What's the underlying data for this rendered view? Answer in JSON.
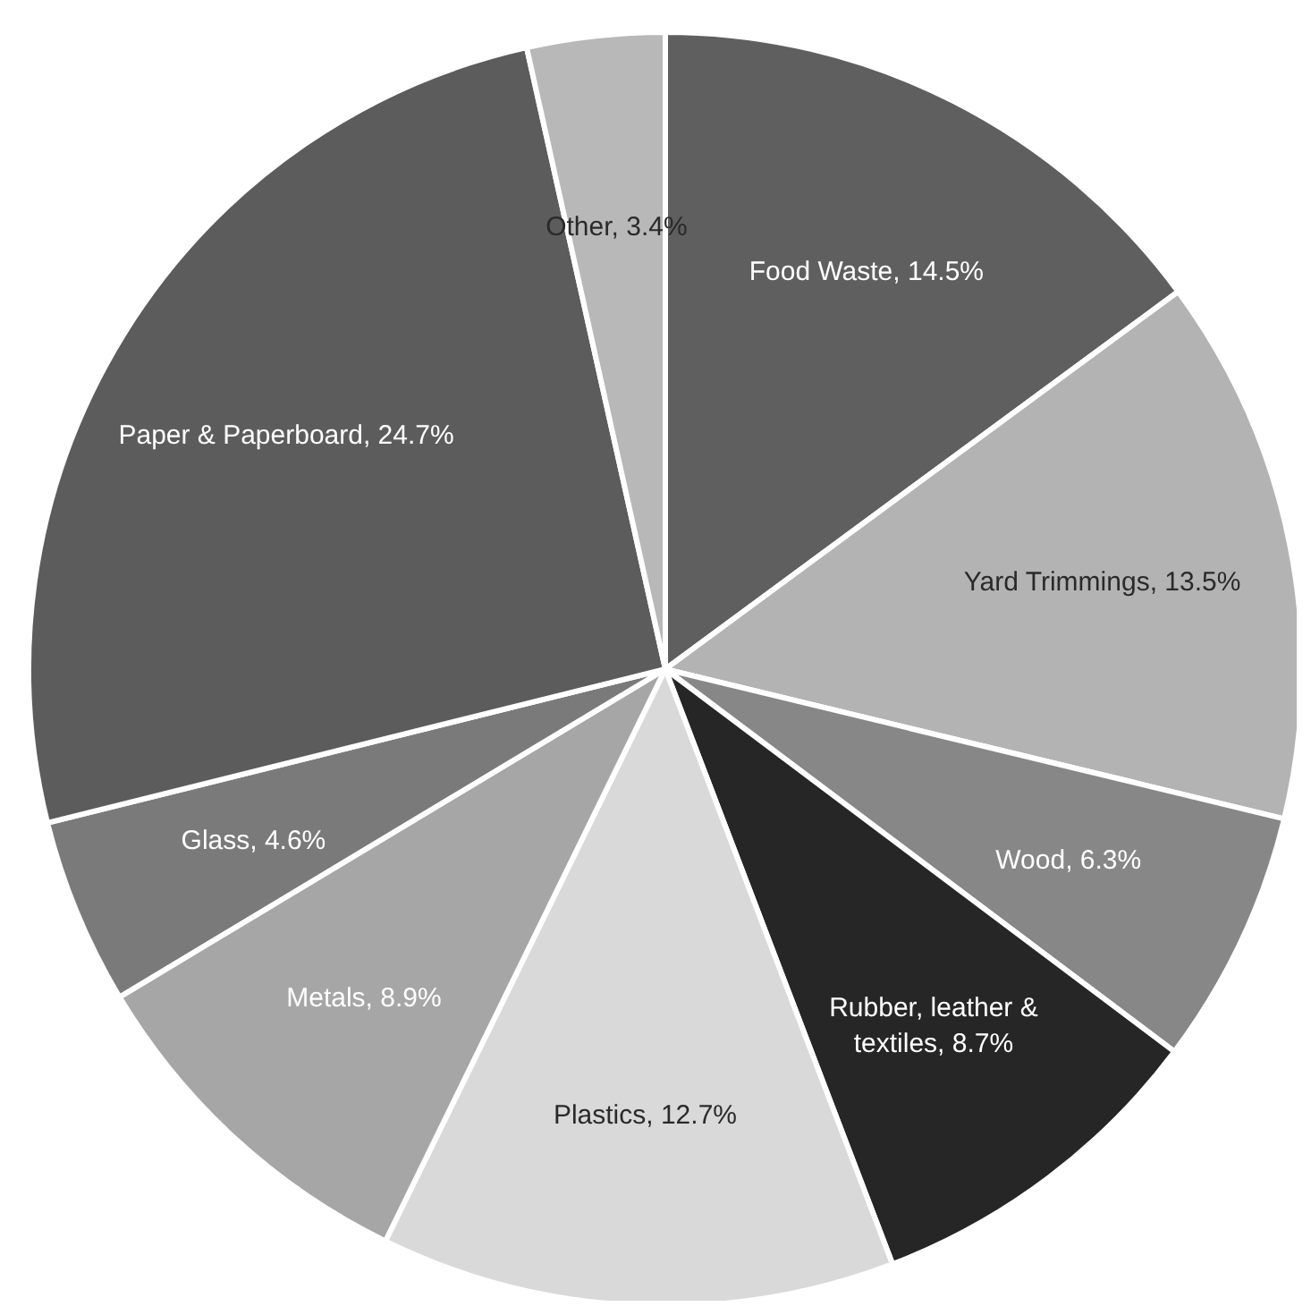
{
  "chart_data": {
    "type": "pie",
    "categories": [
      "Food Waste",
      "Yard Trimmings",
      "Wood",
      "Rubber, leather & textiles",
      "Plastics",
      "Metals",
      "Glass",
      "Paper & Paperboard",
      "Other"
    ],
    "values": [
      14.5,
      13.5,
      6.3,
      8.7,
      12.7,
      8.9,
      4.6,
      24.7,
      3.4
    ],
    "value_labels": [
      "14.5%",
      "13.5%",
      "6.3%",
      "8.7%",
      "12.7%",
      "8.9%",
      "4.6%",
      "24.7%",
      "3.4%"
    ],
    "colors": [
      "#5f5f5f",
      "#b3b3b3",
      "#878787",
      "#262626",
      "#d9d9d9",
      "#a6a6a6",
      "#7a7a7a",
      "#5c5c5c",
      "#b8b8b8"
    ],
    "legend": false
  }
}
